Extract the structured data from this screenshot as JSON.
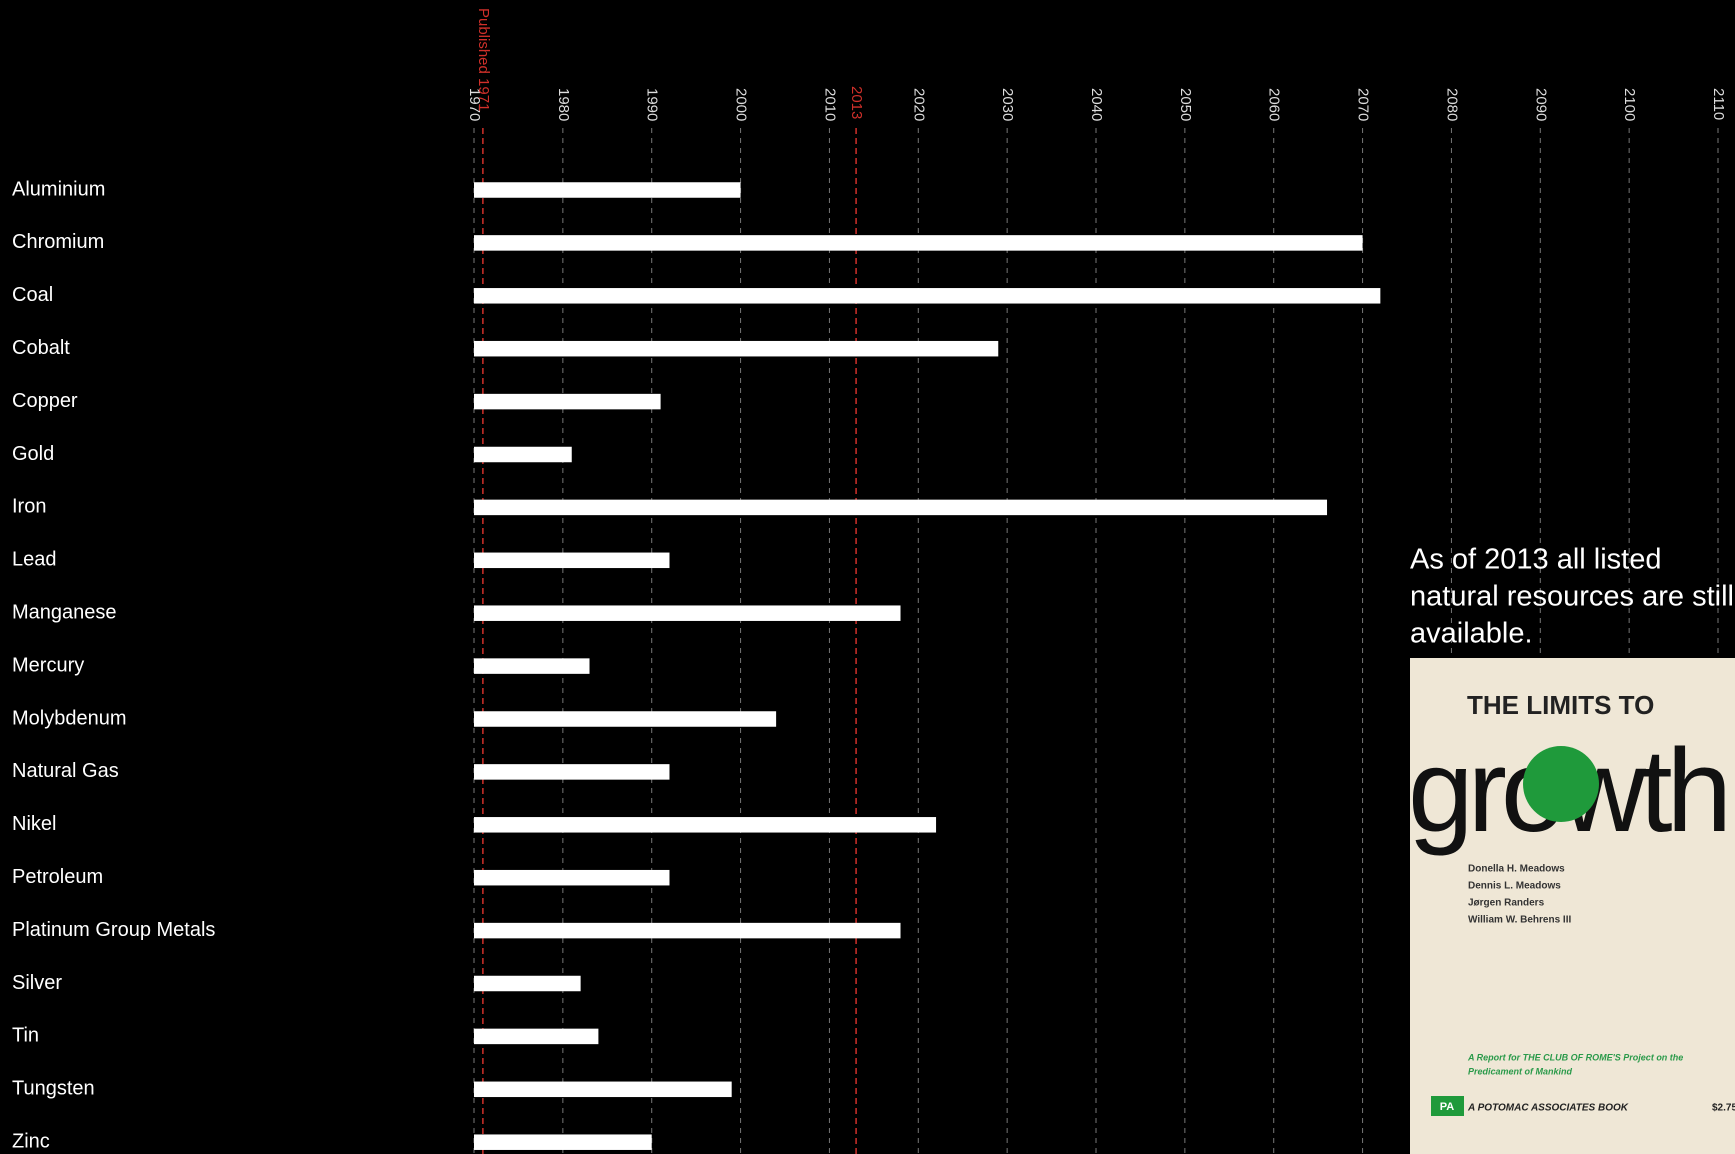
{
  "chart_data": {
    "type": "bar",
    "orientation": "horizontal",
    "categories": [
      "Aluminium",
      "Chromium",
      "Coal",
      "Cobalt",
      "Copper",
      "Gold",
      "Iron",
      "Lead",
      "Manganese",
      "Mercury",
      "Molybdenum",
      "Natural Gas",
      "Nikel",
      "Petroleum",
      "Platinum Group Metals",
      "Silver",
      "Tin",
      "Tungsten",
      "Zinc"
    ],
    "values": [
      2000,
      2070,
      2072,
      2029,
      1991,
      1981,
      2066,
      1992,
      2018,
      1983,
      2004,
      1992,
      2022,
      1992,
      2018,
      1982,
      1984,
      1999,
      1990
    ],
    "color": "#ffffff",
    "xlim": [
      1970,
      2110
    ],
    "xticks": [
      1970,
      1980,
      1990,
      2000,
      2010,
      2020,
      2030,
      2040,
      2050,
      2060,
      2070,
      2080,
      2090,
      2100,
      2110
    ],
    "grid": true,
    "reference_lines": [
      {
        "value": 1971,
        "label": "Published 1971"
      },
      {
        "value": 2013,
        "label": "2013"
      }
    ],
    "reference_color": "#d0302a",
    "note": [
      "As of 2013 all listed",
      "natural resources are still",
      "available."
    ]
  },
  "cover": {
    "heading": "THE LIMITS TO",
    "title": "growth",
    "authors": [
      "Donella H. Meadows",
      "Dennis L. Meadows",
      "Jørgen Randers",
      "William W. Behrens III"
    ],
    "report": [
      "A Report for THE CLUB OF ROME'S Project on the",
      "Predicament of Mankind"
    ],
    "logo": "PA",
    "publisher": "A POTOMAC ASSOCIATES BOOK",
    "price": "$2.75"
  }
}
